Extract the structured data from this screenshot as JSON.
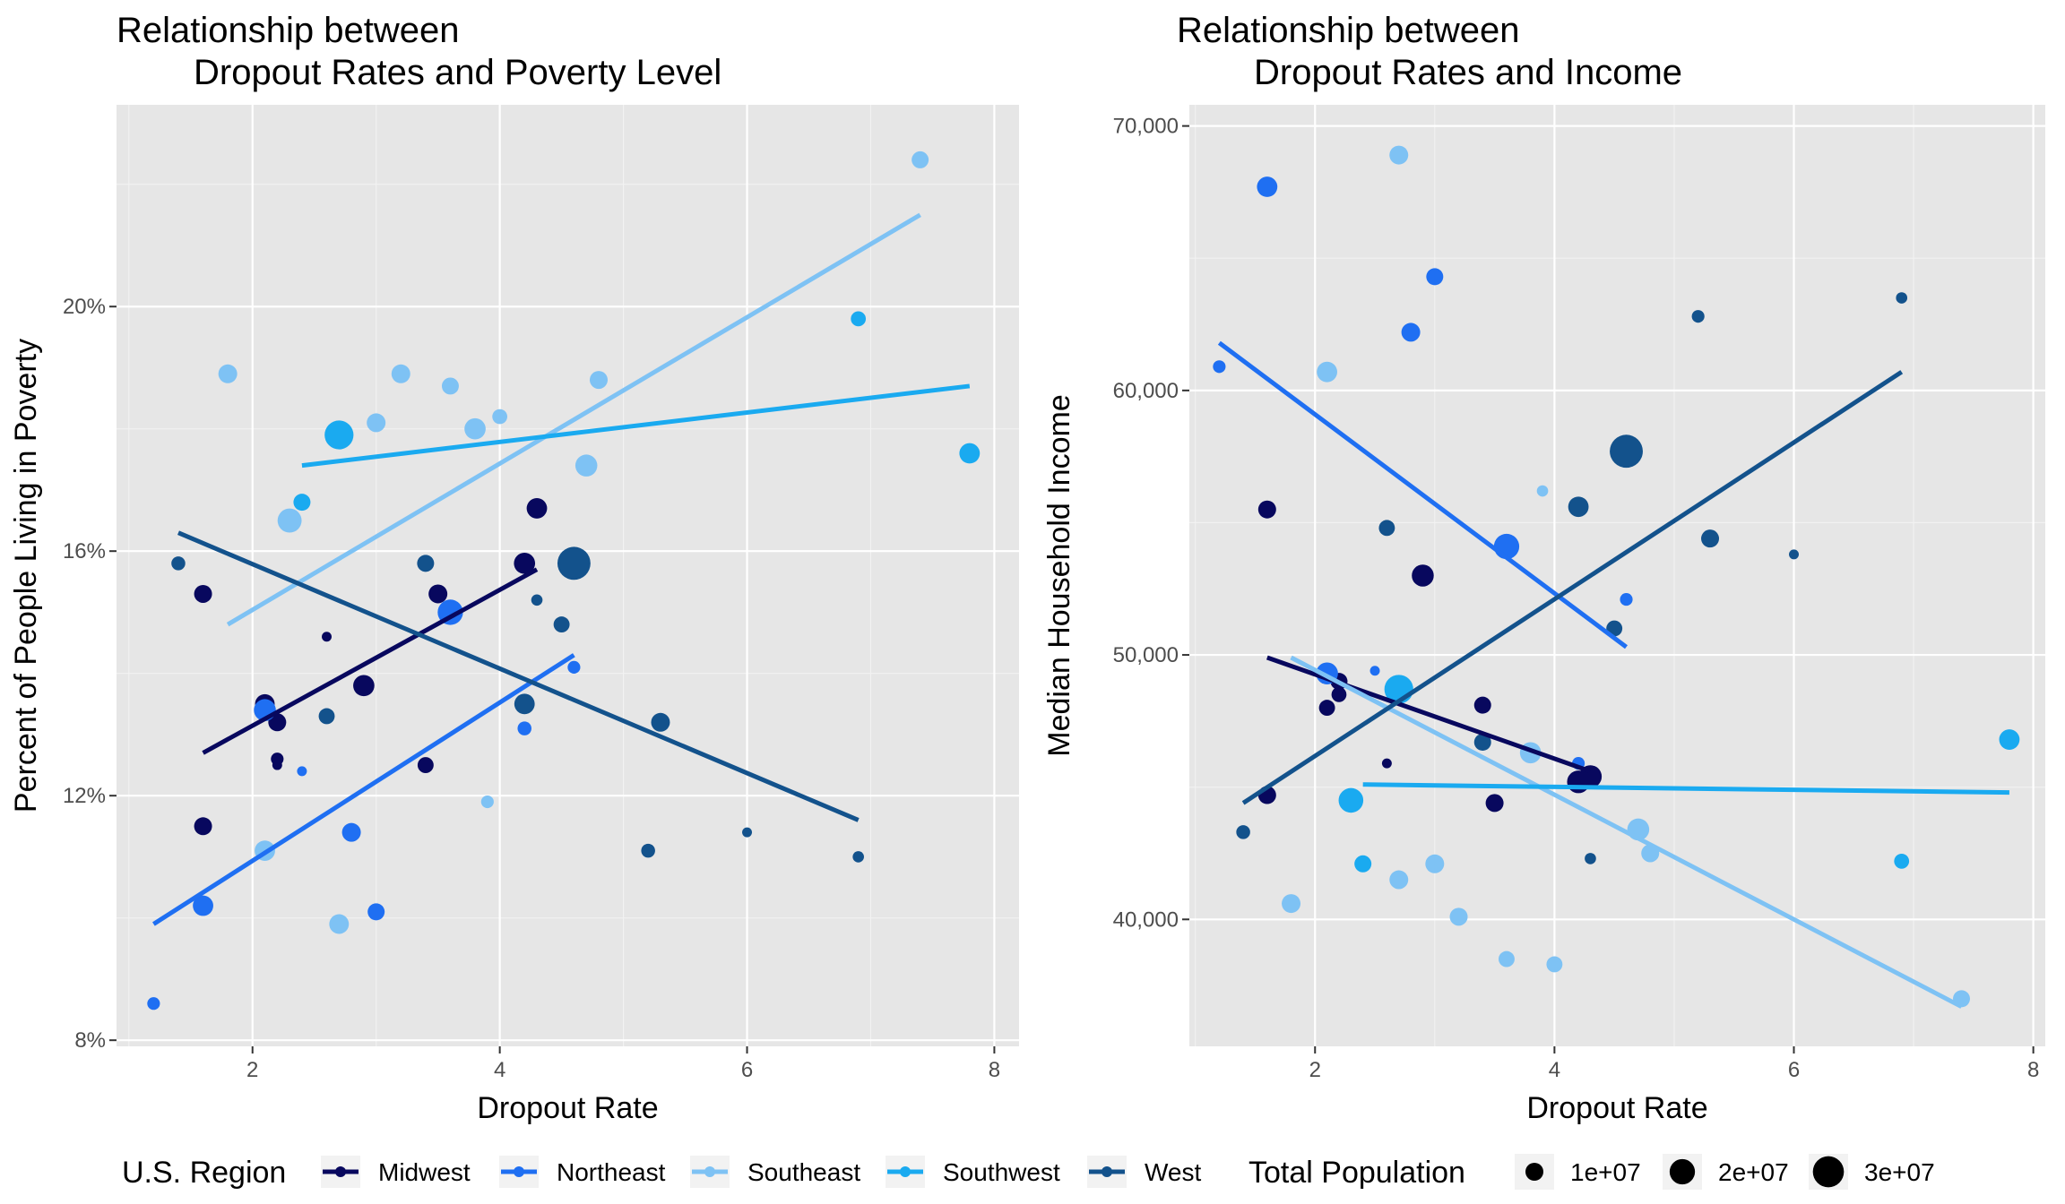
{
  "chart_data": [
    {
      "type": "scatter",
      "title_lines": [
        "Relationship between",
        "Dropout Rates and Poverty Level"
      ],
      "xlabel": "Dropout Rate",
      "ylabel": "Percent of People Living in Poverty",
      "xlim": [
        0.9,
        8.2
      ],
      "ylim": [
        7.9,
        23.3
      ],
      "x_ticks": [
        2,
        4,
        6,
        8
      ],
      "y_ticks": [
        8,
        12,
        16,
        20
      ],
      "y_tick_labels": [
        "8%",
        "12%",
        "16%",
        "20%"
      ],
      "series": [
        {
          "name": "Midwest",
          "color": "#08085e",
          "points": [
            [
              1.6,
              15.3,
              1
            ],
            [
              1.6,
              11.5,
              1
            ],
            [
              2.1,
              13.5,
              1.2
            ],
            [
              2.2,
              13.2,
              1
            ],
            [
              2.2,
              12.6,
              0.5
            ],
            [
              2.2,
              12.5,
              0.3
            ],
            [
              2.6,
              14.6,
              0.3
            ],
            [
              2.9,
              13.8,
              1.4
            ],
            [
              3.4,
              12.5,
              0.8
            ],
            [
              3.5,
              15.3,
              1.1
            ],
            [
              4.2,
              15.8,
              1.4
            ],
            [
              4.3,
              16.7,
              1.3
            ]
          ],
          "fit": [
            [
              1.6,
              12.7
            ],
            [
              4.3,
              15.7
            ]
          ]
        },
        {
          "name": "Northeast",
          "color": "#1f6ff2",
          "points": [
            [
              1.2,
              8.6,
              0.5
            ],
            [
              1.6,
              10.2,
              1.3
            ],
            [
              2.1,
              13.4,
              1.5
            ],
            [
              2.4,
              12.4,
              0.3
            ],
            [
              2.8,
              11.4,
              1.1
            ],
            [
              3.0,
              10.1,
              0.9
            ],
            [
              3.6,
              15.0,
              2.0
            ],
            [
              4.2,
              13.1,
              0.6
            ],
            [
              4.6,
              14.1,
              0.5
            ]
          ],
          "fit": [
            [
              1.2,
              9.9
            ],
            [
              4.6,
              14.3
            ]
          ]
        },
        {
          "name": "Southeast",
          "color": "#7ec2f4",
          "points": [
            [
              1.8,
              18.9,
              1.1
            ],
            [
              2.1,
              11.1,
              1.3
            ],
            [
              2.3,
              16.5,
              1.8
            ],
            [
              2.7,
              9.9,
              1.2
            ],
            [
              3.0,
              18.1,
              1.1
            ],
            [
              3.2,
              18.9,
              1.1
            ],
            [
              3.6,
              18.7,
              0.9
            ],
            [
              3.8,
              18.0,
              1.4
            ],
            [
              3.9,
              11.9,
              0.5
            ],
            [
              4.0,
              18.2,
              0.7
            ],
            [
              4.7,
              17.4,
              1.5
            ],
            [
              4.8,
              18.8,
              1.0
            ],
            [
              7.4,
              22.4,
              0.9
            ]
          ],
          "fit": [
            [
              1.8,
              14.8
            ],
            [
              7.4,
              21.5
            ]
          ]
        },
        {
          "name": "Southwest",
          "color": "#1aaaf0",
          "points": [
            [
              2.4,
              16.8,
              0.9
            ],
            [
              2.7,
              17.9,
              2.6
            ],
            [
              6.9,
              19.8,
              0.7
            ],
            [
              7.8,
              17.6,
              1.3
            ]
          ],
          "fit": [
            [
              2.4,
              17.4
            ],
            [
              7.8,
              18.7
            ]
          ]
        },
        {
          "name": "West",
          "color": "#13528c",
          "points": [
            [
              1.4,
              15.8,
              0.6
            ],
            [
              2.6,
              13.3,
              0.8
            ],
            [
              3.4,
              15.8,
              0.9
            ],
            [
              4.2,
              13.5,
              1.3
            ],
            [
              4.3,
              15.2,
              0.4
            ],
            [
              4.5,
              14.8,
              0.8
            ],
            [
              4.6,
              15.8,
              3.4
            ],
            [
              5.2,
              11.1,
              0.6
            ],
            [
              5.3,
              13.2,
              1.1
            ],
            [
              6.0,
              11.4,
              0.3
            ],
            [
              6.9,
              11.0,
              0.4
            ]
          ],
          "fit": [
            [
              1.4,
              16.3
            ],
            [
              6.9,
              11.6
            ]
          ]
        }
      ]
    },
    {
      "type": "scatter",
      "title_lines": [
        "Relationship between",
        "Dropout Rates and Income"
      ],
      "xlabel": "Dropout Rate",
      "ylabel": "Median Household Income",
      "xlim": [
        0.95,
        8.1
      ],
      "ylim": [
        35200,
        70800
      ],
      "x_ticks": [
        2,
        4,
        6,
        8
      ],
      "y_ticks": [
        40000,
        50000,
        60000,
        70000
      ],
      "y_tick_labels": [
        "40,000",
        "50,000",
        "60,000",
        "70,000"
      ],
      "series": [
        {
          "name": "Midwest",
          "color": "#08085e",
          "points": [
            [
              1.6,
              55500,
              1
            ],
            [
              1.6,
              44700,
              1
            ],
            [
              2.1,
              48000,
              0.8
            ],
            [
              2.2,
              48500,
              0.7
            ],
            [
              2.2,
              49000,
              0.9
            ],
            [
              2.6,
              45900,
              0.3
            ],
            [
              2.9,
              53000,
              1.5
            ],
            [
              3.4,
              48100,
              0.9
            ],
            [
              3.5,
              44400,
              1
            ],
            [
              4.2,
              45200,
              1.6
            ],
            [
              4.3,
              45400,
              1.6
            ]
          ],
          "fit": [
            [
              1.6,
              49900
            ],
            [
              4.3,
              45600
            ]
          ]
        },
        {
          "name": "Northeast",
          "color": "#1f6ff2",
          "points": [
            [
              1.2,
              60900,
              0.5
            ],
            [
              1.6,
              67700,
              1.3
            ],
            [
              2.1,
              49300,
              1.5
            ],
            [
              2.5,
              49400,
              0.3
            ],
            [
              2.8,
              62200,
              1.1
            ],
            [
              3.0,
              64300,
              0.9
            ],
            [
              3.6,
              54100,
              2.0
            ],
            [
              4.2,
              45900,
              0.5
            ],
            [
              4.6,
              52100,
              0.5
            ]
          ],
          "fit": [
            [
              1.2,
              61800
            ],
            [
              4.6,
              50300
            ]
          ]
        },
        {
          "name": "Southeast",
          "color": "#7ec2f4",
          "points": [
            [
              1.8,
              40600,
              1.1
            ],
            [
              2.1,
              60700,
              1.3
            ],
            [
              2.7,
              41500,
              1.1
            ],
            [
              2.7,
              68900,
              1.1
            ],
            [
              3.0,
              42100,
              1.1
            ],
            [
              3.2,
              40100,
              1.0
            ],
            [
              3.6,
              38500,
              0.8
            ],
            [
              3.8,
              46300,
              1.4
            ],
            [
              3.9,
              56200,
              0.4
            ],
            [
              4.0,
              38300,
              0.8
            ],
            [
              4.7,
              43400,
              1.5
            ],
            [
              4.8,
              42500,
              1.0
            ],
            [
              7.4,
              37000,
              0.9
            ]
          ],
          "fit": [
            [
              1.8,
              49900
            ],
            [
              7.4,
              36700
            ]
          ]
        },
        {
          "name": "Southwest",
          "color": "#1aaaf0",
          "points": [
            [
              2.3,
              44500,
              1.9
            ],
            [
              2.4,
              42100,
              0.9
            ],
            [
              2.7,
              48700,
              2.6
            ],
            [
              6.9,
              42200,
              0.7
            ],
            [
              7.8,
              46800,
              1.3
            ]
          ],
          "fit": [
            [
              2.4,
              45100
            ],
            [
              7.8,
              44800
            ]
          ]
        },
        {
          "name": "West",
          "color": "#13528c",
          "points": [
            [
              1.4,
              43300,
              0.6
            ],
            [
              2.6,
              54800,
              0.8
            ],
            [
              3.4,
              46700,
              0.9
            ],
            [
              4.2,
              55600,
              1.3
            ],
            [
              4.3,
              42300,
              0.4
            ],
            [
              4.5,
              51000,
              0.8
            ],
            [
              4.6,
              57700,
              3.4
            ],
            [
              5.2,
              62800,
              0.5
            ],
            [
              5.3,
              54400,
              1.0
            ],
            [
              6.0,
              53800,
              0.3
            ],
            [
              6.9,
              63500,
              0.4
            ]
          ],
          "fit": [
            [
              1.4,
              44400
            ],
            [
              6.9,
              60700
            ]
          ]
        }
      ]
    }
  ],
  "legend": {
    "region_title": "U.S. Region",
    "regions": [
      {
        "label": "Midwest",
        "color": "#08085e"
      },
      {
        "label": "Northeast",
        "color": "#1f6ff2"
      },
      {
        "label": "Southeast",
        "color": "#7ec2f4"
      },
      {
        "label": "Southwest",
        "color": "#1aaaf0"
      },
      {
        "label": "West",
        "color": "#13528c"
      }
    ],
    "population_title": "Total Population",
    "populations": [
      {
        "label": "1e+07",
        "value": 1
      },
      {
        "label": "2e+07",
        "value": 2
      },
      {
        "label": "3e+07",
        "value": 3
      }
    ]
  }
}
